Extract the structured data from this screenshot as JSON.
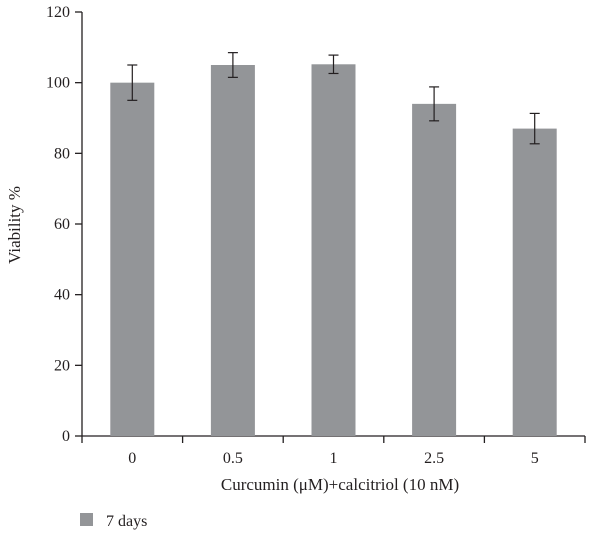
{
  "chart_data": {
    "type": "bar",
    "categories": [
      "0",
      "0.5",
      "1",
      "2.5",
      "5"
    ],
    "series": [
      {
        "name": "7 days",
        "values": [
          100,
          105,
          105.2,
          94,
          87
        ],
        "errors": [
          5,
          3.5,
          2.6,
          4.8,
          4.3
        ]
      }
    ],
    "xlabel": "Curcumin (μM)+calcitriol (10 nM)",
    "ylabel": "Viability %",
    "ylim": [
      0,
      120
    ],
    "yticks": [
      0,
      20,
      40,
      60,
      80,
      100,
      120
    ],
    "grid": false,
    "legend_position": "bottom-left",
    "bar_color": "#939598",
    "axis_color": "#231f20"
  }
}
